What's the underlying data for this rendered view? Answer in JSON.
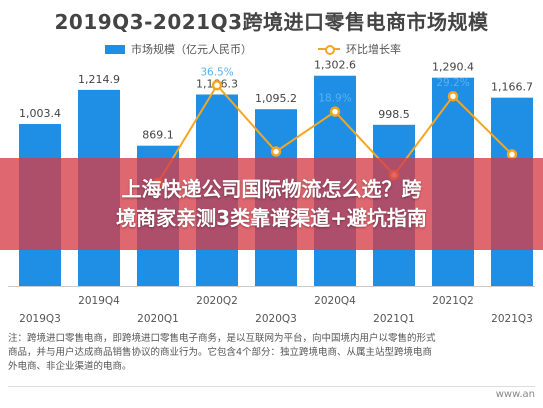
{
  "chart_data": {
    "type": "bar",
    "title": "2019Q3-2021Q3跨境进口零售电商市场规模",
    "categories": [
      "2019Q3",
      "2019Q4",
      "2020Q1",
      "2020Q2",
      "2020Q3",
      "2020Q4",
      "2021Q1",
      "2021Q2",
      "2021Q3"
    ],
    "series": [
      {
        "name": "市场规模（亿元人民币）",
        "type": "bar",
        "values": [
          1003.4,
          1214.9,
          869.1,
          1186.3,
          1095.2,
          1302.6,
          998.5,
          1290.4,
          1166.7
        ],
        "labels": [
          "1,003.4",
          "1,214.9",
          "869.1",
          "1,186.3",
          "1,095.2",
          "1,302.6",
          "998.5",
          "1,290.4",
          "1,166.7"
        ]
      },
      {
        "name": "环比增长率",
        "type": "line",
        "values": [
          null,
          null,
          -28.5,
          36.5,
          -7.7,
          18.9,
          -23.3,
          29.2,
          -9.6
        ],
        "labels": [
          "",
          "",
          "",
          "36.5%",
          "",
          "18.9%",
          "",
          "29.2%",
          ""
        ]
      }
    ],
    "ylim": [
      0,
      1400
    ],
    "growth_ylim": [
      -60,
      60
    ],
    "grid": false,
    "legend_placement": "top",
    "colors": {
      "bar": "#1f8ee5",
      "line": "#f4a623"
    }
  },
  "banner": {
    "line1": "上海快递公司国际物流怎么选？跨",
    "line2": "境商家亲测3类靠谱渠道+避坑指南"
  },
  "notes": [
    "注：跨境进口零售电商，即跨境进口零售电子商务，是以互联网为平台，向中国境内用户以零售的形式",
    "商品，并与用户达成商品销售协议的商业行为。它包含4个部分：独立跨境电商、从属主站型跨境电商",
    "外电商、非企业渠道的电商。"
  ],
  "source": "www.an"
}
